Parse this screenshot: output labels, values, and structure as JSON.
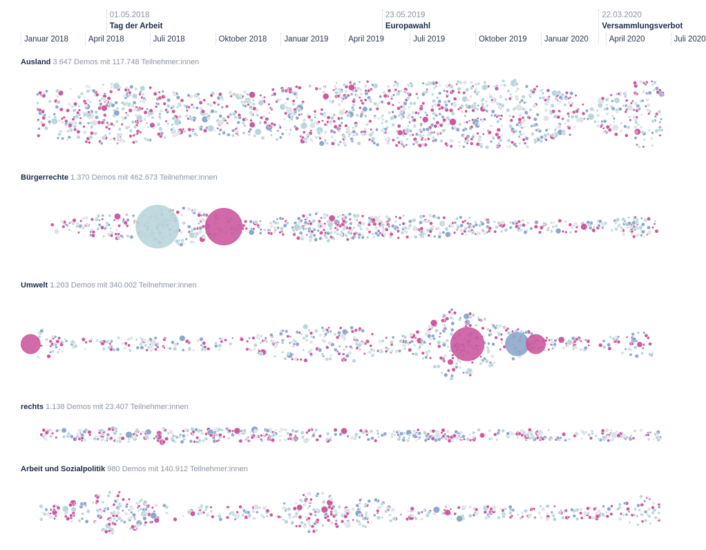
{
  "chart_data": {
    "type": "scatter",
    "variant": "beeswarm",
    "x_axis": {
      "range": [
        "2018-01-01",
        "2020-07-15"
      ],
      "ticks": [
        {
          "date": "2018-01-01",
          "label": "Januar 2018"
        },
        {
          "date": "2018-04-01",
          "label": "April 2018"
        },
        {
          "date": "2018-07-01",
          "label": "Juli 2018"
        },
        {
          "date": "2018-10-01",
          "label": "Oktober 2018"
        },
        {
          "date": "2019-01-01",
          "label": "Januar 2019"
        },
        {
          "date": "2019-04-01",
          "label": "April 2019"
        },
        {
          "date": "2019-07-01",
          "label": "Juli 2019"
        },
        {
          "date": "2019-10-01",
          "label": "Oktober 2019"
        },
        {
          "date": "2020-01-01",
          "label": "Januar 2020"
        },
        {
          "date": "2020-04-01",
          "label": "April 2020"
        },
        {
          "date": "2020-07-01",
          "label": "Juli 2020"
        }
      ]
    },
    "annotations": [
      {
        "date_label": "01.05.2018",
        "name": "Tag der Arbeit",
        "date": "2018-05-01"
      },
      {
        "date_label": "23.05.2019",
        "name": "Europawahl",
        "date": "2019-05-23"
      },
      {
        "date_label": "22.03.2020",
        "name": "Versammlungsverbot",
        "date": "2020-03-22"
      }
    ],
    "categories": [
      {
        "name": "Ausland",
        "stats": "3.647 Demos mit 117.748 Teilnehmer:innen",
        "demos": 3647,
        "participants": 117748
      },
      {
        "name": "Bürgerrechte",
        "stats": "1.370 Demos mit 462.673 Teilnehmer:innen",
        "demos": 1370,
        "participants": 462673
      },
      {
        "name": "Umwelt",
        "stats": "1.203 Demos mit 340.002 Teilnehmer:innen",
        "demos": 1203,
        "participants": 340002
      },
      {
        "name": "rechts",
        "stats": "1.138 Demos mit 23.407 Teilnehmer:innen",
        "demos": 1138,
        "participants": 23407
      },
      {
        "name": "Arbeit und Sozialpolitik",
        "stats": "980 Demos mit 140.912 Teilnehmer:innen",
        "demos": 980,
        "participants": 140912
      }
    ],
    "large_demos": [
      {
        "category": "Bürgerrechte",
        "date": "2018-07-12",
        "participants": 150000,
        "color": "light"
      },
      {
        "category": "Bürgerrechte",
        "date": "2018-10-13",
        "participants": 110000,
        "color": "pink"
      },
      {
        "category": "Umwelt",
        "date": "2019-09-20",
        "participants": 90000,
        "color": "pink"
      },
      {
        "category": "Umwelt",
        "date": "2019-11-29",
        "participants": 45000,
        "color": "blue"
      },
      {
        "category": "Umwelt",
        "date": "2019-12-25",
        "participants": 30000,
        "color": "pink"
      },
      {
        "category": "Umwelt",
        "date": "2018-01-15",
        "participants": 30000,
        "color": "pink"
      }
    ],
    "colors": {
      "pink": "#cc5a9e",
      "blue": "#8ea8cc",
      "light": "#b9d6dc",
      "grey": "#dfe2e6"
    }
  }
}
